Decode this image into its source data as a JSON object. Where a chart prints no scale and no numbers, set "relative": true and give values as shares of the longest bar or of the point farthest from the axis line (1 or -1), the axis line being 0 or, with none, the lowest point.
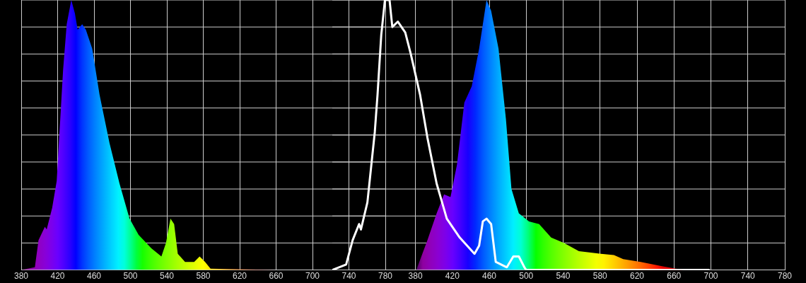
{
  "chart_data": [
    {
      "type": "area",
      "relative": true,
      "xlim": [
        380,
        780
      ],
      "xticks": [
        380,
        420,
        460,
        500,
        540,
        580,
        620,
        660,
        700,
        740,
        780
      ],
      "grid": true,
      "legend": false,
      "x": [
        380,
        395,
        399,
        406,
        408,
        414,
        419,
        426,
        430,
        435,
        439,
        442,
        447,
        451,
        458,
        466,
        477,
        488,
        499,
        509,
        523,
        534,
        539,
        544,
        548,
        552,
        560,
        570,
        576,
        582,
        588,
        617,
        660,
        780
      ],
      "values": [
        0,
        0.01,
        0.11,
        0.16,
        0.15,
        0.23,
        0.33,
        0.74,
        0.91,
        1,
        0.95,
        0.89,
        0.91,
        0.89,
        0.82,
        0.65,
        0.47,
        0.32,
        0.19,
        0.13,
        0.08,
        0.05,
        0.1,
        0.19,
        0.17,
        0.06,
        0.03,
        0.03,
        0.05,
        0.03,
        0.005,
        0.003,
        0,
        0
      ]
    },
    {
      "type": "area",
      "relative": true,
      "xlim": [
        290,
        780
      ],
      "xticks": [
        380,
        420,
        460,
        500,
        540,
        580,
        620,
        660,
        700,
        740,
        780
      ],
      "grid": true,
      "legend": false,
      "series": [
        {
          "x": [
            381,
            393,
            403,
            411,
            418,
            425,
            433,
            441,
            449,
            457,
            462,
            470,
            478,
            484,
            492,
            503,
            514,
            527,
            541,
            557,
            581,
            595,
            605,
            624,
            646,
            662,
            670
          ],
          "values": [
            0,
            0.11,
            0.21,
            0.28,
            0.27,
            0.39,
            0.62,
            0.68,
            0.82,
            1,
            0.96,
            0.82,
            0.56,
            0.3,
            0.21,
            0.18,
            0.17,
            0.12,
            0.1,
            0.07,
            0.06,
            0.055,
            0.04,
            0.03,
            0.015,
            0.005,
            0
          ]
        },
        {
          "type": "line",
          "color": "#ffffff",
          "x": [
            290,
            305,
            312,
            319,
            321,
            328,
            336,
            339,
            343,
            347,
            352,
            355,
            361,
            369,
            375,
            385,
            393,
            403,
            414,
            428,
            444,
            449,
            453,
            457,
            462,
            467,
            479,
            486,
            492,
            498,
            500,
            698
          ],
          "values": [
            0,
            0.02,
            0.11,
            0.17,
            0.15,
            0.25,
            0.51,
            0.65,
            0.87,
            1,
            1,
            0.9,
            0.92,
            0.88,
            0.8,
            0.65,
            0.49,
            0.32,
            0.19,
            0.12,
            0.06,
            0.09,
            0.18,
            0.19,
            0.17,
            0.03,
            0.01,
            0.05,
            0.05,
            0.01,
            0,
            0
          ]
        }
      ]
    }
  ]
}
